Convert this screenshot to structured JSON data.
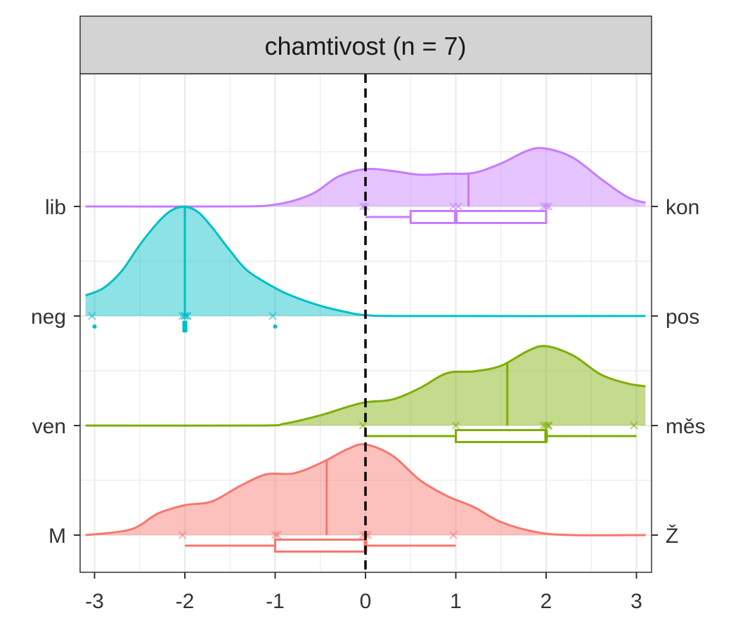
{
  "chart_data": {
    "type": "ridgeline",
    "title": "chamtivost (n = 7)",
    "x_ticks": [
      -3,
      -2,
      -1,
      0,
      1,
      2,
      3
    ],
    "xlim": [
      -3.1,
      3.1
    ],
    "reference_line_x": 0,
    "grid": true,
    "y_labels_left": [
      "lib",
      "neg",
      "ven",
      "M"
    ],
    "y_labels_right": [
      "kon",
      "pos",
      "měs",
      "Ž"
    ],
    "series": [
      {
        "left": "lib",
        "right": "kon",
        "color": "#c77cff",
        "points": [
          0,
          0,
          1,
          1,
          2,
          2,
          2
        ],
        "mean": 1.14,
        "box": {
          "whisker_low": 0,
          "q1": 0.5,
          "median": 1,
          "q3": 2,
          "whisker_high": 2
        },
        "outliers": [],
        "density": [
          [
            -3.1,
            0
          ],
          [
            -1.5,
            0
          ],
          [
            -1,
            0.02
          ],
          [
            -0.6,
            0.13
          ],
          [
            -0.3,
            0.32
          ],
          [
            0,
            0.4
          ],
          [
            0.3,
            0.38
          ],
          [
            0.6,
            0.34
          ],
          [
            0.9,
            0.35
          ],
          [
            1.2,
            0.36
          ],
          [
            1.5,
            0.46
          ],
          [
            1.8,
            0.6
          ],
          [
            2,
            0.62
          ],
          [
            2.3,
            0.52
          ],
          [
            2.6,
            0.3
          ],
          [
            2.9,
            0.1
          ],
          [
            3.1,
            0.04
          ]
        ]
      },
      {
        "left": "neg",
        "right": "pos",
        "color": "#00bfc4",
        "points": [
          -3,
          -2,
          -2,
          -2,
          -2,
          -2,
          -1
        ],
        "mean": -2,
        "box": {
          "whisker_low": -2,
          "q1": -2,
          "median": -2,
          "q3": -2,
          "whisker_high": -2
        },
        "outliers": [
          -3,
          -1
        ],
        "density": [
          [
            -3.1,
            0.22
          ],
          [
            -2.9,
            0.3
          ],
          [
            -2.7,
            0.48
          ],
          [
            -2.5,
            0.76
          ],
          [
            -2.3,
            1.0
          ],
          [
            -2.15,
            1.13
          ],
          [
            -2,
            1.17
          ],
          [
            -1.85,
            1.11
          ],
          [
            -1.7,
            0.95
          ],
          [
            -1.5,
            0.7
          ],
          [
            -1.3,
            0.48
          ],
          [
            -1,
            0.3
          ],
          [
            -0.8,
            0.21
          ],
          [
            -0.5,
            0.11
          ],
          [
            -0.2,
            0.04
          ],
          [
            0,
            0.01
          ],
          [
            0.5,
            0
          ],
          [
            3.1,
            0
          ]
        ]
      },
      {
        "left": "ven",
        "right": "měs",
        "color": "#7cae00",
        "points": [
          0,
          1,
          2,
          2,
          2,
          2,
          3
        ],
        "mean": 1.57,
        "box": {
          "whisker_low": 0,
          "q1": 1,
          "median": 2,
          "q3": 2,
          "whisker_high": 3
        },
        "outliers": [],
        "density": [
          [
            -3.1,
            0
          ],
          [
            -1.2,
            0
          ],
          [
            -0.9,
            0.02
          ],
          [
            -0.5,
            0.11
          ],
          [
            -0.2,
            0.2
          ],
          [
            0,
            0.25
          ],
          [
            0.3,
            0.28
          ],
          [
            0.6,
            0.4
          ],
          [
            0.9,
            0.56
          ],
          [
            1.2,
            0.58
          ],
          [
            1.5,
            0.64
          ],
          [
            1.8,
            0.8
          ],
          [
            2,
            0.85
          ],
          [
            2.3,
            0.75
          ],
          [
            2.6,
            0.55
          ],
          [
            2.9,
            0.45
          ],
          [
            3.1,
            0.42
          ]
        ]
      },
      {
        "left": "M",
        "right": "Ž",
        "color": "#f8766d",
        "points": [
          -2,
          -1,
          -1,
          0,
          0,
          0,
          1
        ],
        "mean": -0.43,
        "box": {
          "whisker_low": -2,
          "q1": -1,
          "median": 0,
          "q3": 0,
          "whisker_high": 1
        },
        "outliers": [],
        "density": [
          [
            -3.1,
            0
          ],
          [
            -2.6,
            0.06
          ],
          [
            -2.3,
            0.23
          ],
          [
            -2,
            0.32
          ],
          [
            -1.7,
            0.36
          ],
          [
            -1.4,
            0.52
          ],
          [
            -1.1,
            0.65
          ],
          [
            -0.8,
            0.66
          ],
          [
            -0.5,
            0.77
          ],
          [
            -0.2,
            0.92
          ],
          [
            0,
            0.97
          ],
          [
            0.3,
            0.85
          ],
          [
            0.6,
            0.59
          ],
          [
            0.9,
            0.42
          ],
          [
            1.2,
            0.3
          ],
          [
            1.5,
            0.14
          ],
          [
            1.9,
            0.03
          ],
          [
            2.3,
            0
          ],
          [
            3.1,
            0
          ]
        ]
      }
    ]
  }
}
